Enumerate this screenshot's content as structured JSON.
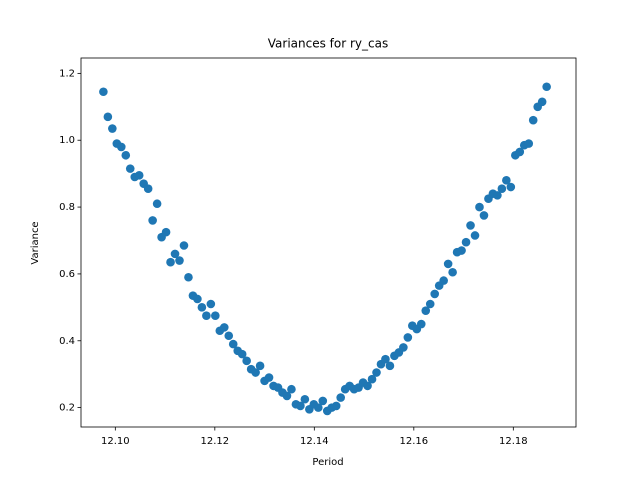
{
  "chart_data": {
    "type": "scatter",
    "title": "Variances for ry_cas",
    "x_label": "Period",
    "y_label": "Variance",
    "color": "#1f77b4",
    "x": [
      12.0976,
      12.0985,
      12.0994,
      12.1003,
      12.1012,
      12.1021,
      12.103,
      12.1039,
      12.1048,
      12.1057,
      12.1066,
      12.1075,
      12.1084,
      12.1093,
      12.1102,
      12.1111,
      12.112,
      12.1129,
      12.1138,
      12.1147,
      12.1156,
      12.1165,
      12.1174,
      12.1183,
      12.1192,
      12.1201,
      12.121,
      12.1219,
      12.1228,
      12.1237,
      12.1246,
      12.1255,
      12.1264,
      12.1273,
      12.1282,
      12.1291,
      12.13,
      12.1309,
      12.1318,
      12.1327,
      12.1336,
      12.1345,
      12.1354,
      12.1363,
      12.1372,
      12.1381,
      12.139,
      12.1399,
      12.1408,
      12.1417,
      12.1426,
      12.1435,
      12.1444,
      12.1453,
      12.1462,
      12.1471,
      12.148,
      12.1489,
      12.1498,
      12.1507,
      12.1516,
      12.1525,
      12.1534,
      12.1543,
      12.1552,
      12.1561,
      12.157,
      12.1579,
      12.1588,
      12.1597,
      12.1606,
      12.1615,
      12.1624,
      12.1633,
      12.1642,
      12.1651,
      12.166,
      12.1669,
      12.1678,
      12.1687,
      12.1696,
      12.1705,
      12.1714,
      12.1723,
      12.1732,
      12.1741,
      12.175,
      12.1759,
      12.1768,
      12.1777,
      12.1786,
      12.1795,
      12.1804,
      12.1813,
      12.1822,
      12.1831,
      12.184,
      12.1849,
      12.1858,
      12.1867
    ],
    "values": [
      1.145,
      1.07,
      1.035,
      0.99,
      0.98,
      0.955,
      0.915,
      0.89,
      0.895,
      0.87,
      0.855,
      0.76,
      0.81,
      0.71,
      0.725,
      0.635,
      0.66,
      0.64,
      0.685,
      0.59,
      0.535,
      0.525,
      0.5,
      0.475,
      0.51,
      0.475,
      0.43,
      0.44,
      0.415,
      0.39,
      0.37,
      0.36,
      0.34,
      0.315,
      0.305,
      0.325,
      0.28,
      0.29,
      0.265,
      0.26,
      0.245,
      0.235,
      0.255,
      0.21,
      0.205,
      0.225,
      0.195,
      0.21,
      0.2,
      0.22,
      0.19,
      0.2,
      0.205,
      0.23,
      0.255,
      0.265,
      0.255,
      0.26,
      0.275,
      0.265,
      0.285,
      0.305,
      0.33,
      0.345,
      0.325,
      0.355,
      0.365,
      0.38,
      0.41,
      0.445,
      0.435,
      0.45,
      0.49,
      0.51,
      0.54,
      0.565,
      0.58,
      0.63,
      0.605,
      0.665,
      0.67,
      0.695,
      0.745,
      0.715,
      0.8,
      0.775,
      0.825,
      0.84,
      0.835,
      0.855,
      0.88,
      0.86,
      0.955,
      0.965,
      0.985,
      0.99,
      1.06,
      1.1,
      1.115,
      1.16
    ],
    "xlim": [
      12.0931,
      12.1926
    ],
    "ylim": [
      0.142,
      1.246
    ],
    "xticks": [
      {
        "value": 12.1,
        "label": "12.10"
      },
      {
        "value": 12.12,
        "label": "12.12"
      },
      {
        "value": 12.14,
        "label": "12.14"
      },
      {
        "value": 12.16,
        "label": "12.16"
      },
      {
        "value": 12.18,
        "label": "12.18"
      }
    ],
    "yticks": [
      0.2,
      0.4,
      0.6,
      0.8,
      {
        "value": 1.0,
        "label": "1.0"
      },
      1.2
    ]
  }
}
